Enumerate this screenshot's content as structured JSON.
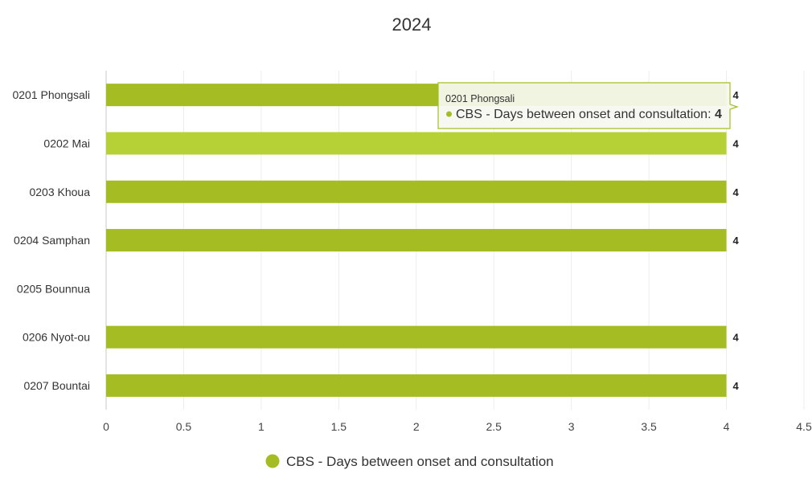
{
  "chart_data": {
    "type": "bar",
    "orientation": "horizontal",
    "title": "2024",
    "categories": [
      "0201 Phongsali",
      "0202 Mai",
      "0203 Khoua",
      "0204 Samphan",
      "0205 Bounnua",
      "0206 Nyot-ou",
      "0207 Bountai"
    ],
    "series": [
      {
        "name": "CBS - Days between onset and consultation",
        "color": "#a5bd22",
        "values": [
          4,
          4,
          4,
          4,
          null,
          4,
          4
        ]
      }
    ],
    "xlim": [
      0,
      4.5
    ],
    "xticks": [
      "0",
      "0.5",
      "1",
      "1.5",
      "2",
      "2.5",
      "3",
      "3.5",
      "4",
      "4.5"
    ],
    "data_labels": [
      "4",
      "4",
      "4",
      "4",
      "",
      "4",
      "4"
    ],
    "highlight_index": 1,
    "highlight_color": "#b6d135",
    "grid": "vertical",
    "legend_position": "bottom-center",
    "tooltip": {
      "category": "0201 Phongsali",
      "series": "CBS - Days between onset and consultation",
      "sep": ":",
      "value": "4"
    }
  }
}
